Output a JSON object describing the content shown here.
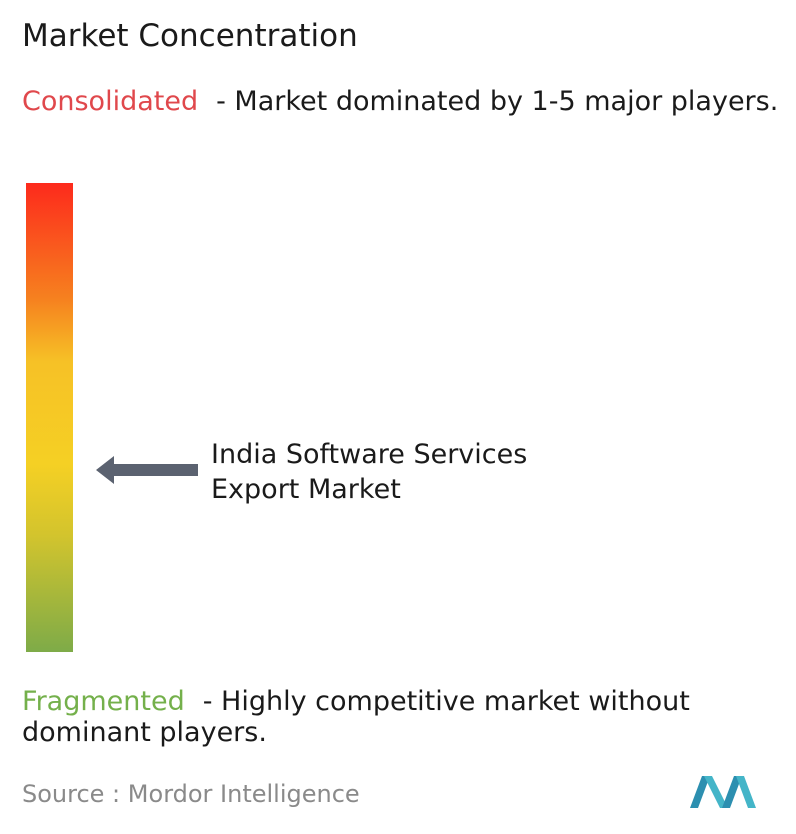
{
  "header": {
    "title": "Market Concentration"
  },
  "consolidated": {
    "label": "Consolidated",
    "description": "- Market dominated by 1-5 major players."
  },
  "market": {
    "label": "India Software Services Export Market"
  },
  "fragmented": {
    "label": "Fragmented",
    "description": "- Highly competitive market without dominant players."
  },
  "source": {
    "label": "Source :",
    "name": "Mordor Intelligence"
  }
}
